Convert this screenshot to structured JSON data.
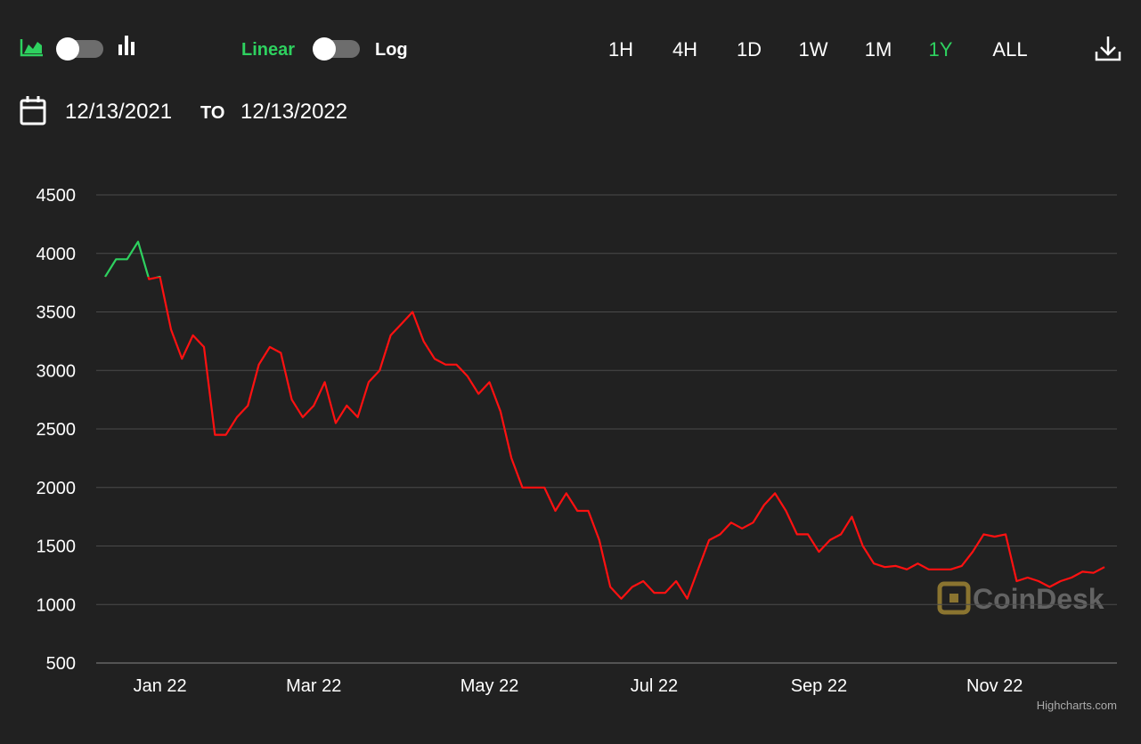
{
  "toolbar": {
    "scale_options": [
      "Linear",
      "Log"
    ],
    "selected_scale": "Linear",
    "range_buttons": [
      "1H",
      "4H",
      "1D",
      "1W",
      "1M",
      "1Y",
      "ALL"
    ],
    "selected_range": "1Y",
    "date_from": "12/13/2021",
    "date_separator": "TO",
    "date_to": "12/13/2022"
  },
  "watermark": "CoinDesk",
  "credits": "Highcharts.com",
  "chart_data": {
    "type": "line",
    "categories": [
      null,
      null,
      null,
      null,
      null,
      "Jan 22",
      null,
      null,
      null,
      null,
      null,
      null,
      null,
      null,
      null,
      null,
      null,
      null,
      null,
      "Mar 22",
      null,
      null,
      null,
      null,
      null,
      null,
      null,
      null,
      null,
      null,
      null,
      null,
      null,
      null,
      null,
      "May 22",
      null,
      null,
      null,
      null,
      null,
      null,
      null,
      null,
      null,
      null,
      null,
      null,
      null,
      null,
      "Jul 22",
      null,
      null,
      null,
      null,
      null,
      null,
      null,
      null,
      null,
      null,
      null,
      null,
      null,
      null,
      "Sep 22",
      null,
      null,
      null,
      null,
      null,
      null,
      null,
      null,
      null,
      null,
      null,
      null,
      null,
      null,
      null,
      "Nov 22",
      null,
      null,
      null,
      null,
      null,
      null,
      null,
      null,
      null,
      null
    ],
    "series": [
      {
        "values": [
          3800,
          3950,
          3950,
          4100,
          3780,
          3800,
          3350,
          3100,
          3300,
          3200,
          2450,
          2450,
          2600,
          2700,
          3050,
          3200,
          3150,
          2750,
          2600,
          2700,
          2900,
          2550,
          2700,
          2600,
          2900,
          3000,
          3300,
          3400,
          3500,
          3250,
          3100,
          3050,
          3050,
          2950,
          2800,
          2900,
          2650,
          2250,
          2000,
          2000,
          2000,
          1800,
          1950,
          1800,
          1800,
          1550,
          1150,
          1050,
          1150,
          1200,
          1100,
          1100,
          1200,
          1050,
          1300,
          1550,
          1600,
          1700,
          1650,
          1700,
          1850,
          1950,
          1800,
          1600,
          1600,
          1450,
          1550,
          1600,
          1750,
          1500,
          1350,
          1320,
          1330,
          1300,
          1350,
          1300,
          1300,
          1300,
          1330,
          1450,
          1600,
          1580,
          1600,
          1200,
          1230,
          1200,
          1150,
          1200,
          1230,
          1280,
          1270,
          1320
        ],
        "threshold": 3800,
        "color_above": "#2ed15f",
        "color_below": "#ff1111"
      }
    ],
    "ylim": [
      500,
      4500
    ],
    "yticks": [
      500,
      1000,
      1500,
      2000,
      2500,
      3000,
      3500,
      4000,
      4500
    ],
    "grid": true,
    "log_scale": false
  }
}
